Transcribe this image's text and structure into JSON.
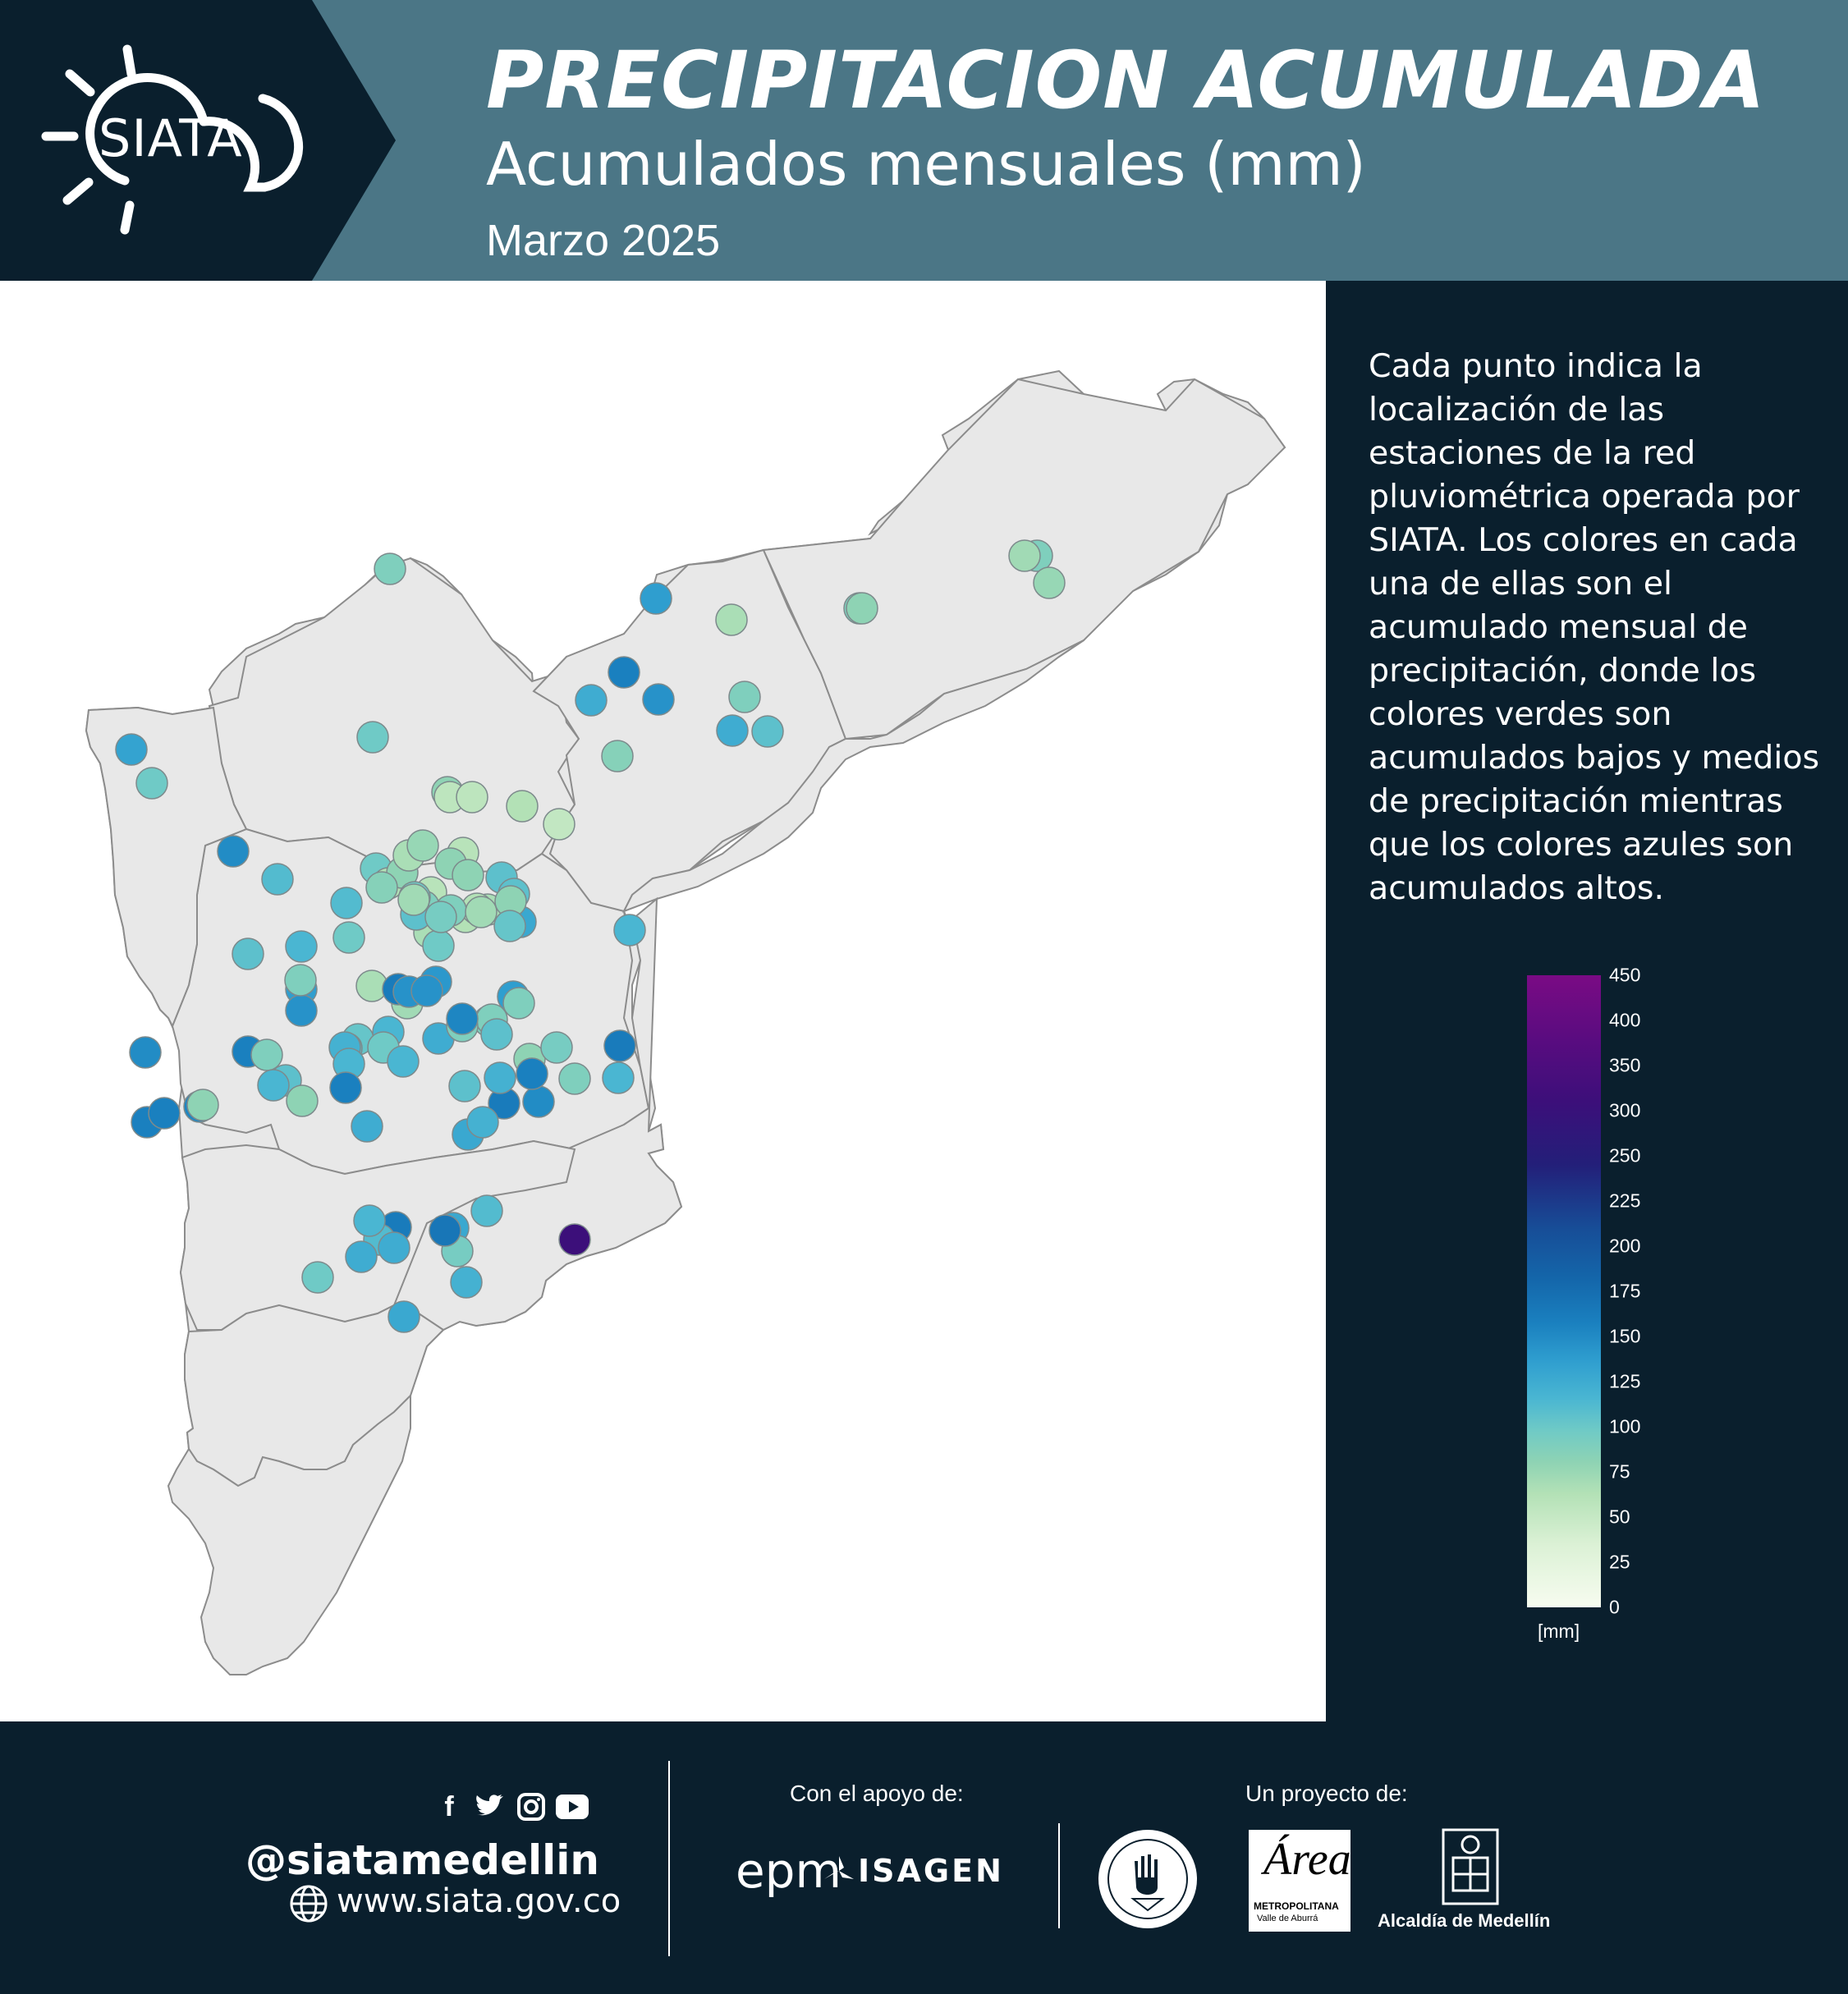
{
  "header": {
    "logo_text": "SIATA",
    "title": "PRECIPITACION ACUMULADA",
    "subtitle": "Acumulados mensuales (mm)",
    "date": "Marzo 2025"
  },
  "sidebar": {
    "description": "Cada  punto indica la localización de las estaciones de la red pluviométrica operada por SIATA. Los colores en cada una de ellas son el acumulado mensual de precipitación, donde los colores verdes son acumulados bajos y medios de precipitación mientras que los colores azules son acumulados altos.",
    "colorbar": {
      "ticks": [
        "450",
        "400",
        "350",
        "300",
        "250",
        "225",
        "200",
        "175",
        "150",
        "125",
        "100",
        "75",
        "50",
        "25",
        "0"
      ],
      "unit": "[mm]",
      "colors": {
        "low": "#f7fcf0",
        "mid": "#4ab6d2",
        "high": "#7a0b84"
      }
    }
  },
  "map": {
    "region_fill": "#e8e8e8",
    "border_color": "#8c8c8c",
    "station_values_mm": [
      120,
      170,
      130,
      110,
      190,
      145,
      145,
      85,
      130,
      130,
      90,
      110,
      80,
      80,
      90,
      75,
      175,
      200,
      185,
      160,
      160,
      120,
      140,
      115,
      95,
      120,
      120,
      100,
      105,
      110,
      95,
      105,
      110,
      110,
      140,
      165,
      140,
      150,
      130,
      95,
      90,
      90,
      85,
      95,
      120,
      140,
      130,
      130,
      120,
      140,
      110,
      115,
      100,
      135,
      100,
      125,
      150,
      190,
      200,
      175,
      200,
      200,
      195,
      110,
      185,
      140,
      135,
      140,
      120,
      100,
      120,
      205,
      150,
      120,
      150,
      110,
      175,
      120,
      95,
      205,
      185,
      180,
      185,
      150,
      130,
      150,
      160,
      120,
      120,
      140,
      195,
      205,
      165,
      110,
      155,
      125,
      120,
      155,
      190,
      200,
      140,
      155,
      150,
      200,
      160,
      350,
      205,
      165,
      125,
      145,
      210,
      145,
      160,
      150,
      160,
      165,
      155,
      130
    ]
  },
  "footer": {
    "handle": "@siatamedellin",
    "website": "www.siata.gov.co",
    "support_label": "Con el apoyo de:",
    "project_label": "Un proyecto de:",
    "epm": "epm",
    "isagen": "ISAGEN",
    "area_logo_main": "Área",
    "area_logo_line1": "METROPOLITANA",
    "area_logo_line2": "Valle de Aburrá",
    "alcaldia": "Alcaldía de Medellín",
    "social": [
      "facebook-icon",
      "twitter-icon",
      "instagram-icon",
      "youtube-icon"
    ]
  }
}
